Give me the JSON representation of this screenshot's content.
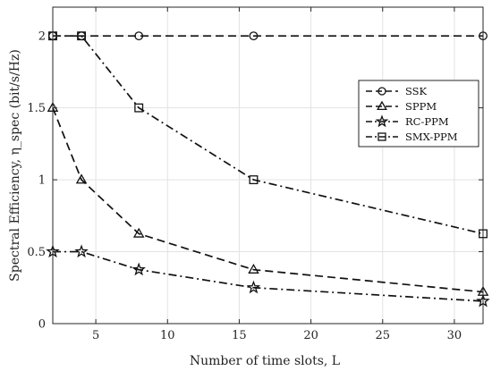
{
  "chart_data": {
    "type": "line",
    "title": "",
    "xlabel": "Number of time slots, L",
    "ylabel": "Spectral Efficiency, η_spec (bit/s/Hz)",
    "xlim": [
      2,
      32
    ],
    "ylim": [
      0,
      2.2
    ],
    "xticks": [
      5,
      10,
      15,
      20,
      25,
      30
    ],
    "yticks": [
      0,
      0.5,
      1,
      1.5,
      2
    ],
    "ytick_labels": [
      "0",
      "0.5",
      "1",
      "1.5",
      "2"
    ],
    "grid": true,
    "legend_position": "right",
    "series": [
      {
        "name": "SSK",
        "marker": "circle",
        "dash": "dashed",
        "x": [
          2,
          4,
          8,
          16,
          32
        ],
        "y": [
          2,
          2,
          2,
          2,
          2
        ]
      },
      {
        "name": "SPPM",
        "marker": "triangle",
        "dash": "dashed",
        "x": [
          2,
          4,
          8,
          16,
          32
        ],
        "y": [
          1.5,
          1.0,
          0.625,
          0.375,
          0.22
        ]
      },
      {
        "name": "RC-PPM",
        "marker": "star",
        "dash": "dashdot",
        "x": [
          2,
          4,
          8,
          16,
          32
        ],
        "y": [
          0.5,
          0.5,
          0.375,
          0.25,
          0.156
        ]
      },
      {
        "name": "SMX-PPM",
        "marker": "square",
        "dash": "dashdot",
        "x": [
          2,
          4,
          8,
          16,
          32
        ],
        "y": [
          2,
          2,
          1.5,
          1.0,
          0.625
        ]
      }
    ]
  }
}
